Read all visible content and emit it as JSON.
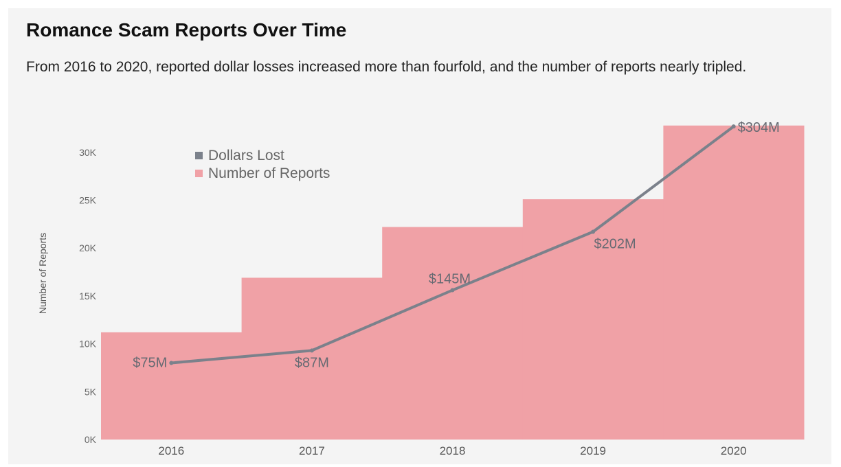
{
  "header": {
    "title": "Romance Scam Reports Over Time",
    "subtitle": "From 2016 to 2020, reported dollar losses increased more than fourfold, and the number of reports nearly tripled."
  },
  "colors": {
    "reports_fill": "#f0a1a6",
    "dollars_line": "#7b818b",
    "background": "#f4f4f4"
  },
  "chart_data": {
    "type": "bar",
    "categories": [
      "2016",
      "2017",
      "2018",
      "2019",
      "2020"
    ],
    "ylabel": "Number of Reports",
    "xlabel": "",
    "ylim": [
      0,
      33000
    ],
    "yticks": [
      0,
      5000,
      10000,
      15000,
      20000,
      25000,
      30000
    ],
    "ytick_labels": [
      "0K",
      "5K",
      "10K",
      "15K",
      "20K",
      "25K",
      "30K"
    ],
    "grid": false,
    "legend_position": "top-left",
    "legend": [
      "Dollars Lost",
      "Number of Reports"
    ],
    "series": [
      {
        "name": "Number of Reports",
        "type": "bar",
        "values": [
          11200,
          16900,
          22200,
          25100,
          32800
        ]
      },
      {
        "name": "Dollars Lost",
        "type": "line",
        "values": [
          75,
          87,
          145,
          202,
          304
        ],
        "labels": [
          "$75M",
          "$87M",
          "$145M",
          "$202M",
          "$304M"
        ],
        "plotted_at_reports_scale": [
          8000,
          9300,
          15600,
          21700,
          32700
        ]
      }
    ]
  }
}
